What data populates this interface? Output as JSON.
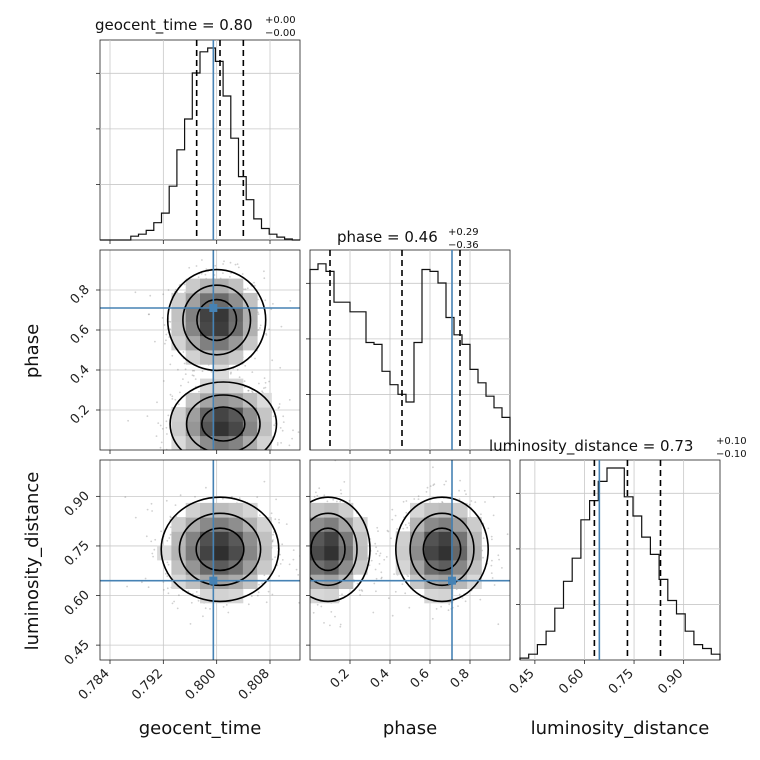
{
  "chart_data": {
    "type": "corner",
    "parameters": [
      "geocent_time",
      "phase",
      "luminosity_distance"
    ],
    "ranges": {
      "geocent_time": [
        0.7825,
        0.8125
      ],
      "phase": [
        0.0,
        1.0
      ],
      "luminosity_distance": [
        0.405,
        1.01
      ]
    },
    "ticks": {
      "geocent_time": [
        "0.784",
        "0.792",
        "0.800",
        "0.808"
      ],
      "phase": [
        "0.2",
        "0.4",
        "0.6",
        "0.8"
      ],
      "luminosity_distance": [
        "0.45",
        "0.60",
        "0.75",
        "0.90"
      ]
    },
    "truths": {
      "geocent_time": 0.7995,
      "phase": 0.71,
      "luminosity_distance": 0.645
    },
    "titles": {
      "geocent_time": {
        "text": "geocent_time = 0.80",
        "sup": "+0.00",
        "sub": "−0.00"
      },
      "phase": {
        "text": "phase = 0.46",
        "sup": "+0.29",
        "sub": "−0.36"
      },
      "luminosity_distance": {
        "text": "luminosity_distance = 0.73",
        "sup": "+0.10",
        "sub": "−0.10"
      }
    },
    "quantiles": {
      "geocent_time": [
        0.797,
        0.8005,
        0.804
      ],
      "phase": [
        0.1,
        0.46,
        0.75
      ],
      "luminosity_distance": [
        0.63,
        0.73,
        0.83
      ]
    },
    "histograms": {
      "geocent_time": [
        0,
        0,
        0,
        0,
        0.02,
        0.03,
        0.05,
        0.09,
        0.14,
        0.28,
        0.47,
        0.63,
        0.87,
        0.98,
        1.0,
        0.93,
        0.75,
        0.53,
        0.33,
        0.21,
        0.11,
        0.06,
        0.03,
        0.015,
        0.005,
        0
      ],
      "phase": [
        0.94,
        0.97,
        0.93,
        0.77,
        0.77,
        0.72,
        0.72,
        0.56,
        0.55,
        0.41,
        0.34,
        0.29,
        0.25,
        0.56,
        0.94,
        0.93,
        0.87,
        0.69,
        0.6,
        0.55,
        0.42,
        0.35,
        0.28,
        0.22,
        0.17
      ],
      "luminosity_distance": [
        0.01,
        0.03,
        0.08,
        0.15,
        0.27,
        0.41,
        0.53,
        0.73,
        0.83,
        0.93,
        1.0,
        1.0,
        0.85,
        0.75,
        0.64,
        0.55,
        0.42,
        0.31,
        0.24,
        0.15,
        0.08,
        0.06,
        0.03
      ]
    }
  }
}
